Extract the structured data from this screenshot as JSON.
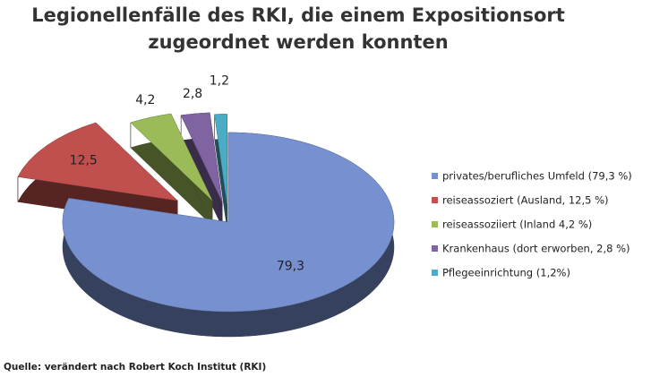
{
  "chart_data": {
    "type": "pie3d",
    "title": [
      "Legionellenfälle des RKI, die einem Expositionsort",
      "zugeordnet werden konnten"
    ],
    "categories": [
      "privates/berufliches Umfeld (79,3 %)",
      "reiseassoziert (Ausland, 12,5 %)",
      "reiseassoziiert (Inland 4,2 %)",
      "Krankenhaus (dort erworben, 2,8 %)",
      "Pflegeeinrichtung (1,2%)"
    ],
    "values": [
      79.3,
      12.5,
      4.2,
      2.8,
      1.2
    ],
    "value_labels": [
      "79,3",
      "12,5",
      "4,2",
      "2,8",
      "1,2"
    ],
    "colors": [
      "#7791d0",
      "#c0504d",
      "#9bbb59",
      "#8064a2",
      "#4bacc6"
    ],
    "legend": "right",
    "source": "Quelle: verändert nach Robert Koch Institut (RKI)"
  }
}
